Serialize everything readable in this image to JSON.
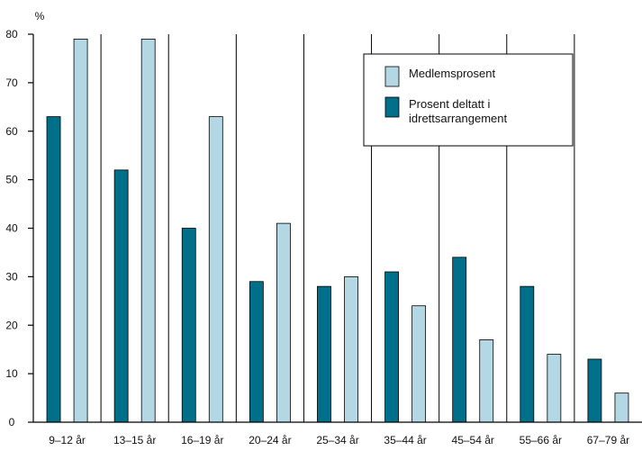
{
  "chart_data": {
    "type": "bar",
    "ylabel": "%",
    "ylim": [
      0,
      80
    ],
    "yticks": [
      0,
      10,
      20,
      30,
      40,
      50,
      60,
      70,
      80
    ],
    "grid": "vertical lines between age groups",
    "legend_position": "top-right",
    "categories": [
      "9–12 år",
      "13–15 år",
      "16–19 år",
      "20–24 år",
      "25–34 år",
      "35–44 år",
      "45–54 år",
      "55–66 år",
      "67–79 år"
    ],
    "series": [
      {
        "name": "Prosent deltatt i idrettsarrangement",
        "color": "#006f8a",
        "values": [
          63,
          52,
          40,
          29,
          28,
          31,
          34,
          28,
          13
        ]
      },
      {
        "name": "Medlemsprosent",
        "color": "#b3d7e3",
        "values": [
          79,
          79,
          63,
          41,
          30,
          24,
          17,
          14,
          6
        ]
      }
    ],
    "legend": [
      {
        "series_index": 1,
        "lines": [
          "Medlemsprosent"
        ]
      },
      {
        "series_index": 0,
        "lines": [
          "Prosent deltatt i",
          "idrettsarrangement"
        ]
      }
    ]
  }
}
